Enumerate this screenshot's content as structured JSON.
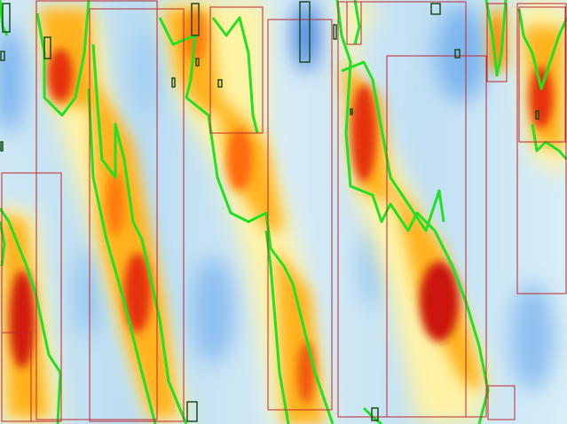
{
  "image": {
    "kind": "heatmap-with-detection-overlay",
    "colormap": [
      "#2f6fd6",
      "#7fb6ee",
      "#cfe8f5",
      "#fff6b0",
      "#ffd21a",
      "#ff9a00",
      "#e5330f",
      "#c40f0f"
    ],
    "contour_color": "#22e022",
    "box_color": "#c0272d",
    "small_box_color": "#1a4d1a"
  },
  "visible_text": []
}
